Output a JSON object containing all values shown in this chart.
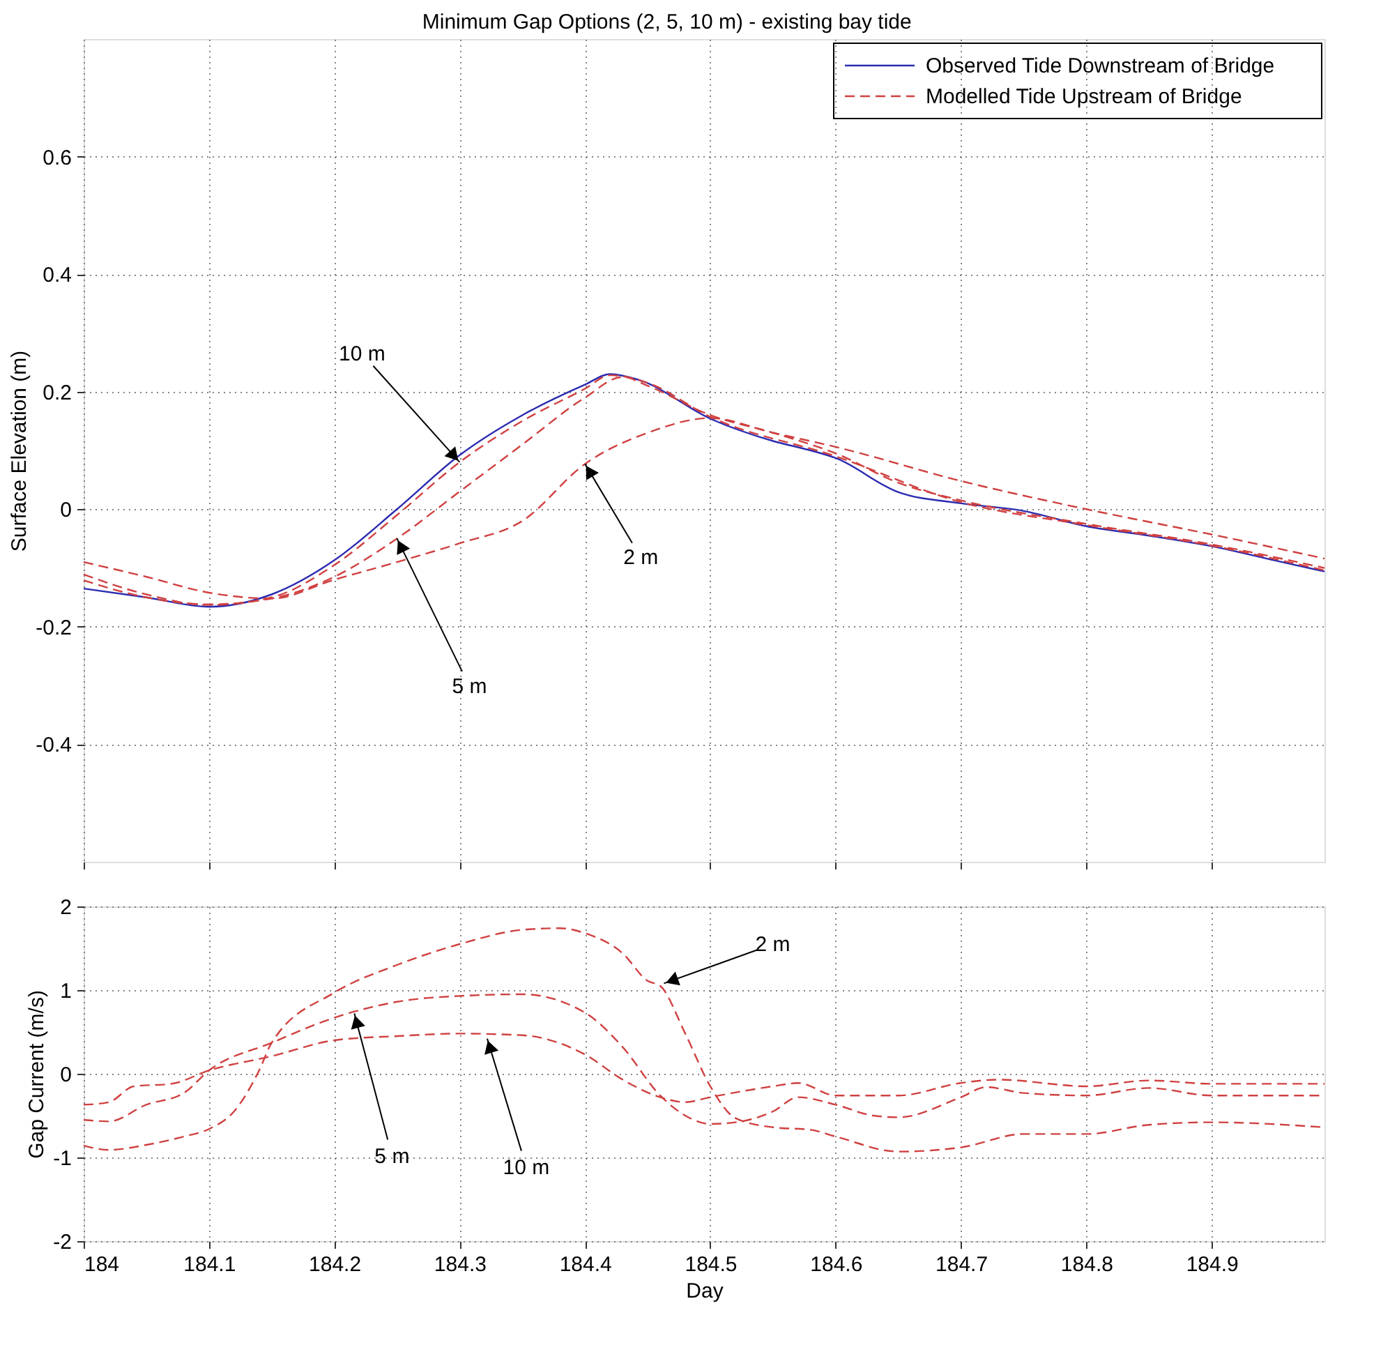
{
  "chart_data": [
    {
      "type": "line",
      "title": "Minimum Gap Options (2, 5, 10 m) - existing bay tide",
      "ylabel": "Surface Elevation (m)",
      "xlim": [
        184,
        184.99
      ],
      "xticks": [
        184,
        184.1,
        184.2,
        184.3,
        184.4,
        184.5,
        184.6,
        184.7,
        184.8,
        184.9
      ],
      "ylim": [
        -0.6,
        0.8
      ],
      "yticks": [
        -0.4,
        -0.2,
        0,
        0.2,
        0.4,
        0.6
      ],
      "grid": true,
      "legend": "top right",
      "tick_labels": "y",
      "series": [
        {
          "name": "Observed Tide Downstream of Bridge",
          "color": "#2b2bb0",
          "line_style": "solid",
          "x": [
            184,
            184.05,
            184.1,
            184.15,
            184.2,
            184.25,
            184.3,
            184.35,
            184.4,
            184.42,
            184.443,
            184.5,
            184.55,
            184.58,
            184.6,
            184.65,
            184.7,
            184.75,
            184.8,
            184.85,
            184.9,
            184.95,
            184.99
          ],
          "values": [
            -0.135,
            -0.15,
            -0.166,
            -0.145,
            -0.087,
            0.0,
            0.092,
            0.16,
            0.212,
            0.23,
            0.22,
            0.154,
            0.116,
            0.1,
            0.087,
            0.029,
            0.01,
            -0.003,
            -0.029,
            -0.045,
            -0.063,
            -0.087,
            -0.106
          ]
        },
        {
          "name": "Modelled Tide Upstream of Bridge",
          "color": "#d04040",
          "line_style": "dashed",
          "x": [
            184,
            184.05,
            184.1,
            184.15,
            184.2,
            184.25,
            184.3,
            184.35,
            184.4,
            184.42,
            184.45,
            184.5,
            184.6,
            184.7,
            184.8,
            184.9,
            184.99
          ],
          "values": [
            -0.111,
            -0.145,
            -0.163,
            -0.15,
            -0.095,
            -0.01,
            0.08,
            0.15,
            0.205,
            0.228,
            0.215,
            0.157,
            0.09,
            0.012,
            -0.027,
            -0.062,
            -0.104
          ]
        },
        {
          "color": "#d04040",
          "line_style": "dashed",
          "x": [
            184,
            184.05,
            184.1,
            184.15,
            184.2,
            184.25,
            184.3,
            184.35,
            184.4,
            184.43,
            184.45,
            184.5,
            184.55,
            184.6,
            184.65,
            184.7,
            184.8,
            184.9,
            184.99
          ],
          "values": [
            -0.121,
            -0.15,
            -0.162,
            -0.152,
            -0.115,
            -0.05,
            0.03,
            0.11,
            0.19,
            0.225,
            0.21,
            0.16,
            0.13,
            0.095,
            0.045,
            0.015,
            -0.025,
            -0.06,
            -0.1
          ]
        },
        {
          "color": "#d04040",
          "line_style": "dashed",
          "x": [
            184,
            184.05,
            184.1,
            184.15,
            184.2,
            184.25,
            184.3,
            184.35,
            184.4,
            184.45,
            184.5,
            184.55,
            184.6,
            184.7,
            184.8,
            184.9,
            184.99
          ],
          "values": [
            -0.09,
            -0.115,
            -0.142,
            -0.152,
            -0.12,
            -0.09,
            -0.058,
            -0.02,
            0.077,
            0.13,
            0.155,
            0.13,
            0.106,
            0.048,
            0.0,
            -0.043,
            -0.084
          ]
        }
      ],
      "annotations": [
        {
          "text": "10 m",
          "x": 184.3,
          "y": 0.08
        },
        {
          "text": "5 m",
          "x": 184.25,
          "y": -0.05
        },
        {
          "text": "2 m",
          "x": 184.4,
          "y": 0.077
        }
      ]
    },
    {
      "type": "line",
      "xlabel": "Day",
      "ylabel": "Gap Current (m/s)",
      "xlim": [
        184,
        184.99
      ],
      "xticks": [
        184,
        184.1,
        184.2,
        184.3,
        184.4,
        184.5,
        184.6,
        184.7,
        184.8,
        184.9
      ],
      "ylim": [
        -2,
        2
      ],
      "yticks": [
        -2,
        -1,
        0,
        1,
        2
      ],
      "grid": true,
      "series": [
        {
          "color": "#d04040",
          "line_style": "dashed",
          "x": [
            184,
            184.02,
            184.05,
            184.08,
            184.1,
            184.12,
            184.14,
            184.15,
            184.2,
            184.25,
            184.3,
            184.35,
            184.38,
            184.4,
            184.43,
            184.45,
            184.46,
            184.48,
            184.5,
            184.52,
            184.55,
            184.58,
            184.6,
            184.65,
            184.7,
            184.75,
            184.8,
            184.85,
            184.9,
            184.99
          ],
          "values": [
            -0.86,
            -0.91,
            -0.85,
            -0.75,
            -0.66,
            -0.45,
            0.04,
            0.37,
            0.97,
            1.3,
            1.55,
            1.72,
            1.74,
            1.68,
            1.44,
            1.11,
            1.05,
            0.48,
            -0.15,
            -0.53,
            -0.64,
            -0.67,
            -0.75,
            -0.93,
            -0.88,
            -0.72,
            -0.72,
            -0.61,
            -0.58,
            -0.64
          ]
        },
        {
          "color": "#d04040",
          "line_style": "dashed",
          "x": [
            184,
            184.02,
            184.05,
            184.08,
            184.1,
            184.15,
            184.2,
            184.25,
            184.3,
            184.35,
            184.4,
            184.43,
            184.46,
            184.48,
            184.5,
            184.52,
            184.55,
            184.57,
            184.6,
            184.63,
            184.65,
            184.7,
            184.72,
            184.75,
            184.8,
            184.85,
            184.9,
            184.99
          ],
          "values": [
            -0.55,
            -0.57,
            -0.37,
            -0.23,
            0.04,
            0.37,
            0.67,
            0.86,
            0.93,
            0.95,
            0.73,
            0.32,
            -0.26,
            -0.5,
            -0.6,
            -0.58,
            -0.45,
            -0.28,
            -0.37,
            -0.5,
            -0.52,
            -0.28,
            -0.16,
            -0.23,
            -0.26,
            -0.17,
            -0.26,
            -0.26
          ]
        },
        {
          "color": "#d04040",
          "line_style": "dashed",
          "x": [
            184,
            184.02,
            184.04,
            184.07,
            184.1,
            184.15,
            184.2,
            184.25,
            184.3,
            184.35,
            184.4,
            184.43,
            184.46,
            184.48,
            184.5,
            184.55,
            184.57,
            184.6,
            184.65,
            184.7,
            184.73,
            184.8,
            184.85,
            184.9,
            184.99
          ],
          "values": [
            -0.37,
            -0.34,
            -0.15,
            -0.12,
            0.04,
            0.21,
            0.4,
            0.45,
            0.48,
            0.46,
            0.23,
            -0.07,
            -0.28,
            -0.34,
            -0.28,
            -0.15,
            -0.11,
            -0.26,
            -0.26,
            -0.11,
            -0.07,
            -0.15,
            -0.08,
            -0.12,
            -0.12
          ]
        }
      ],
      "annotations": [
        {
          "text": "5 m",
          "x": 184.216,
          "y": 0.72
        },
        {
          "text": "10 m",
          "x": 184.322,
          "y": 0.42
        },
        {
          "text": "2 m",
          "x": 184.463,
          "y": 1.08
        }
      ]
    }
  ]
}
